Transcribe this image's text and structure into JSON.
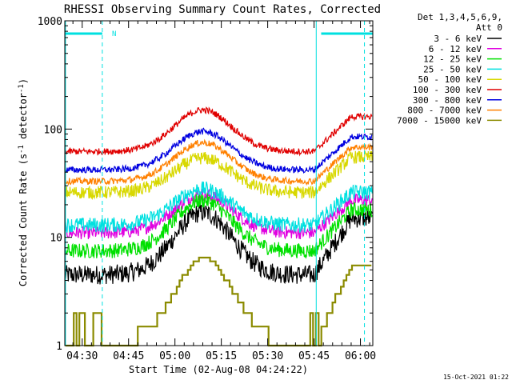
{
  "chart_data": {
    "type": "line",
    "title": "RHESSI Observing Summary Count Rates, Corrected",
    "xlabel": "Start Time (02-Aug-08 04:24:22)",
    "ylabel_main": "Corrected Count Rate (s",
    "ylabel_sup1": "-1",
    "ylabel_mid": " detector",
    "ylabel_sup2": "-1",
    "ylabel_end": ")",
    "y_scale": "log",
    "ylim": [
      1,
      1000
    ],
    "xlim_minutes": [
      264.37,
      364.0
    ],
    "x_ticks": [
      {
        "label": "04:30",
        "minute": 270
      },
      {
        "label": "04:45",
        "minute": 285
      },
      {
        "label": "05:00",
        "minute": 300
      },
      {
        "label": "05:15",
        "minute": 315
      },
      {
        "label": "05:30",
        "minute": 330
      },
      {
        "label": "05:45",
        "minute": 345
      },
      {
        "label": "06:00",
        "minute": 360
      }
    ],
    "y_ticks": [
      {
        "label": "1",
        "value": 1
      },
      {
        "label": "10",
        "value": 10
      },
      {
        "label": "100",
        "value": 100
      },
      {
        "label": "1000",
        "value": 1000
      }
    ],
    "legend_header": [
      "Det 1,3,4,5,6,9,",
      "Att 0"
    ],
    "legend_position": "right",
    "timestamp": "15-Oct-2021 01:22",
    "flag_label": "N",
    "series": [
      {
        "name": "3 - 6 keV",
        "color": "#000000",
        "base": 4.5,
        "peak": 17,
        "end": 15,
        "noise": 0.09
      },
      {
        "name": "6 - 12 keV",
        "color": "#e000e0",
        "base": 11,
        "peak": 25,
        "end": 22,
        "noise": 0.06
      },
      {
        "name": "12 - 25 keV",
        "color": "#00e000",
        "base": 7.5,
        "peak": 22,
        "end": 18,
        "noise": 0.07
      },
      {
        "name": "25 - 50 keV",
        "color": "#00e0e0",
        "base": 13,
        "peak": 28,
        "end": 26,
        "noise": 0.07
      },
      {
        "name": "50 - 100 keV",
        "color": "#d8d800",
        "base": 26,
        "peak": 54,
        "end": 55,
        "noise": 0.06
      },
      {
        "name": "100 - 300 keV",
        "color": "#e00000",
        "base": 62,
        "peak": 150,
        "end": 130,
        "noise": 0.03
      },
      {
        "name": "300 - 800 keV",
        "color": "#0000e0",
        "base": 42,
        "peak": 95,
        "end": 85,
        "noise": 0.03
      },
      {
        "name": "800 - 7000 keV",
        "color": "#ff8000",
        "base": 33,
        "peak": 75,
        "end": 68,
        "noise": 0.03
      },
      {
        "name": "7000 - 15000 keV",
        "color": "#8b8b00",
        "base": 1.1,
        "peak": 6.5,
        "end": 5.5,
        "noise": 0.0
      }
    ],
    "orbit_events": [
      {
        "type": "night_bar",
        "start": 264.37,
        "end": 276.5
      },
      {
        "type": "night_bar",
        "start": 347.3,
        "end": 364.0
      }
    ],
    "vertical_lines": [
      {
        "minute": 264.6,
        "style": "solid"
      },
      {
        "minute": 276.5,
        "style": "dashed"
      },
      {
        "minute": 345.7,
        "style": "solid"
      },
      {
        "minute": 361.3,
        "style": "dashed"
      }
    ]
  }
}
